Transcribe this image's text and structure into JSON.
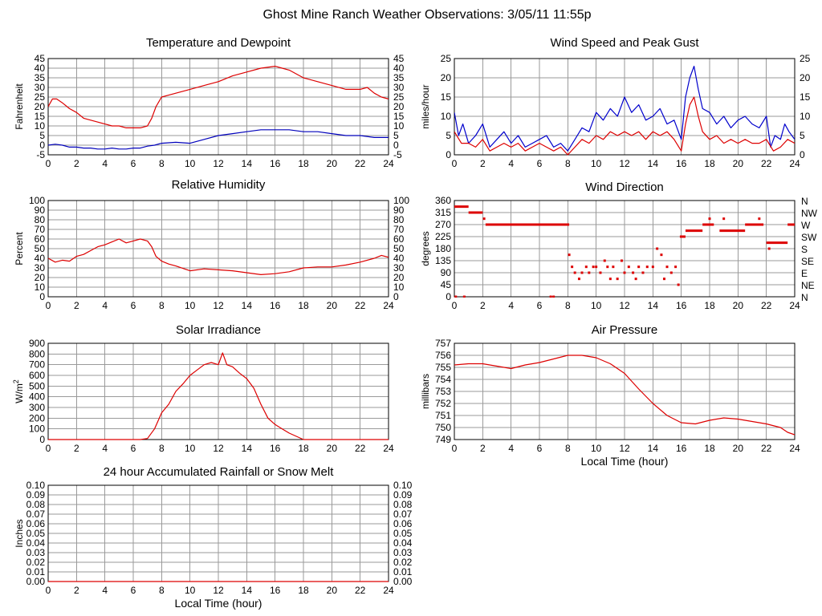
{
  "page_title": "Ghost Mine Ranch Weather Observations: 3/05/11 11:55p",
  "colors": {
    "temp": "#dd0000",
    "dew": "#0000bb",
    "wind": "#0000cc",
    "gust": "#dd0000",
    "humid": "#dd0000",
    "dir": "#dd0000",
    "solar": "#dd0000",
    "pressure": "#dd0000",
    "rain": "#dd0000",
    "grid": "#9a9a9a"
  },
  "chart_data": [
    {
      "id": "temperature",
      "type": "line",
      "title": "Temperature and Dewpoint",
      "xlabel": "",
      "ylabel": "Fahrenheit",
      "xlim": [
        0,
        24
      ],
      "ylim": [
        -5,
        45
      ],
      "x_ticks": [
        "0",
        "2",
        "4",
        "6",
        "8",
        "10",
        "12",
        "14",
        "16",
        "18",
        "20",
        "22",
        "24"
      ],
      "y_ticks": [
        "-5",
        "0",
        "5",
        "10",
        "15",
        "20",
        "25",
        "30",
        "35",
        "40",
        "45"
      ],
      "right_axis": true,
      "grid": true,
      "series": [
        {
          "color_key": "temp",
          "x": [
            0,
            0.3,
            0.6,
            1,
            1.5,
            2,
            2.5,
            3,
            3.5,
            4,
            4.5,
            5,
            5.5,
            6,
            6.5,
            7,
            7.3,
            7.6,
            8,
            8.5,
            9,
            10,
            11,
            12,
            13,
            14,
            15,
            16,
            16.5,
            17,
            18,
            19,
            20,
            21,
            22,
            22.5,
            23,
            23.5,
            24
          ],
          "values": [
            20,
            24,
            24,
            22,
            19,
            17,
            14,
            13,
            12,
            11,
            10,
            10,
            9,
            9,
            9,
            10,
            14,
            20,
            25,
            26,
            27,
            29,
            31,
            33,
            36,
            38,
            40,
            41,
            40,
            39,
            35,
            33,
            31,
            29,
            29,
            30,
            27,
            25,
            24
          ]
        },
        {
          "color_key": "dew",
          "x": [
            0,
            0.5,
            1,
            1.5,
            2,
            2.5,
            3,
            3.5,
            4,
            4.5,
            5,
            5.5,
            6,
            6.5,
            7,
            7.5,
            8,
            9,
            10,
            11,
            12,
            13,
            14,
            15,
            16,
            16.5,
            17,
            18,
            19,
            20,
            21,
            22,
            23,
            23.5,
            24
          ],
          "values": [
            0,
            0.5,
            0,
            -1,
            -1,
            -1.5,
            -1.5,
            -2,
            -2,
            -1.5,
            -2,
            -2,
            -1.5,
            -1.5,
            -0.5,
            0,
            1,
            1.5,
            1,
            3,
            5,
            6,
            7,
            8,
            8,
            8,
            8,
            7,
            7,
            6,
            5,
            5,
            4,
            4,
            4
          ]
        }
      ]
    },
    {
      "id": "wind",
      "type": "line",
      "title": "Wind Speed and Peak Gust",
      "xlabel": "",
      "ylabel": "miles/hour",
      "xlim": [
        0,
        24
      ],
      "ylim": [
        0,
        25
      ],
      "x_ticks": [
        "0",
        "2",
        "4",
        "6",
        "8",
        "10",
        "12",
        "14",
        "16",
        "18",
        "20",
        "22",
        "24"
      ],
      "y_ticks": [
        "0",
        "5",
        "10",
        "15",
        "20",
        "25"
      ],
      "right_axis": true,
      "grid": true,
      "series": [
        {
          "color_key": "wind",
          "x": [
            0,
            0.3,
            0.6,
            1,
            1.5,
            2,
            2.5,
            3,
            3.5,
            4,
            4.5,
            5,
            5.5,
            6,
            6.5,
            7,
            7.5,
            8,
            8.5,
            9,
            9.5,
            10,
            10.5,
            11,
            11.5,
            12,
            12.5,
            13,
            13.5,
            14,
            14.5,
            15,
            15.5,
            16,
            16.3,
            16.6,
            16.9,
            17.2,
            17.5,
            18,
            18.5,
            19,
            19.5,
            20,
            20.5,
            21,
            21.5,
            22,
            22.3,
            22.6,
            23,
            23.3,
            23.6,
            24
          ],
          "values": [
            11,
            5,
            8,
            3,
            5,
            8,
            2,
            4,
            6,
            3,
            5,
            2,
            3,
            4,
            5,
            2,
            3,
            1,
            4,
            7,
            6,
            11,
            9,
            12,
            10,
            15,
            11,
            13,
            9,
            10,
            12,
            8,
            9,
            4,
            15,
            20,
            23,
            17,
            12,
            11,
            8,
            10,
            7,
            9,
            10,
            8,
            7,
            10,
            2,
            5,
            4,
            8,
            6,
            4
          ]
        },
        {
          "color_key": "gust",
          "x": [
            0,
            0.5,
            1,
            1.5,
            2,
            2.5,
            3,
            3.5,
            4,
            4.5,
            5,
            5.5,
            6,
            6.5,
            7,
            7.5,
            8,
            8.5,
            9,
            9.5,
            10,
            10.5,
            11,
            11.5,
            12,
            12.5,
            13,
            13.5,
            14,
            14.5,
            15,
            15.5,
            16,
            16.3,
            16.6,
            16.9,
            17.2,
            17.5,
            18,
            18.5,
            19,
            19.5,
            20,
            20.5,
            21,
            21.5,
            22,
            22.5,
            23,
            23.5,
            24
          ],
          "values": [
            6,
            3,
            3,
            2,
            4,
            1,
            2,
            3,
            2,
            3,
            1,
            2,
            3,
            2,
            1,
            2,
            0,
            2,
            4,
            3,
            5,
            4,
            6,
            5,
            6,
            5,
            6,
            4,
            6,
            5,
            6,
            4,
            1,
            8,
            13,
            15,
            10,
            6,
            4,
            5,
            3,
            4,
            3,
            4,
            3,
            3,
            4,
            1,
            2,
            4,
            3
          ]
        }
      ]
    },
    {
      "id": "humidity",
      "type": "line",
      "title": "Relative Humidity",
      "xlabel": "",
      "ylabel": "Percent",
      "xlim": [
        0,
        24
      ],
      "ylim": [
        0,
        100
      ],
      "x_ticks": [
        "0",
        "2",
        "4",
        "6",
        "8",
        "10",
        "12",
        "14",
        "16",
        "18",
        "20",
        "22",
        "24"
      ],
      "y_ticks": [
        "0",
        "10",
        "20",
        "30",
        "40",
        "50",
        "60",
        "70",
        "80",
        "90",
        "100"
      ],
      "right_axis": true,
      "grid": true,
      "series": [
        {
          "color_key": "humid",
          "x": [
            0,
            0.5,
            1,
            1.5,
            2,
            2.5,
            3,
            3.5,
            4,
            4.5,
            5,
            5.5,
            6,
            6.5,
            7,
            7.3,
            7.6,
            8,
            8.5,
            9,
            10,
            11,
            12,
            13,
            14,
            15,
            16,
            17,
            18,
            19,
            20,
            21,
            22,
            23,
            23.5,
            24
          ],
          "values": [
            40,
            36,
            38,
            37,
            42,
            44,
            48,
            52,
            54,
            57,
            60,
            56,
            58,
            60,
            58,
            52,
            42,
            37,
            34,
            32,
            27,
            29,
            28,
            27,
            25,
            23,
            24,
            26,
            30,
            31,
            31,
            33,
            36,
            40,
            43,
            41
          ]
        }
      ]
    },
    {
      "id": "direction",
      "type": "scatter",
      "title": "Wind Direction",
      "xlabel": "",
      "ylabel": "degrees",
      "xlim": [
        0,
        24
      ],
      "ylim": [
        0,
        360
      ],
      "x_ticks": [
        "0",
        "2",
        "4",
        "6",
        "8",
        "10",
        "12",
        "14",
        "16",
        "18",
        "20",
        "22",
        "24"
      ],
      "y_ticks": [
        "0",
        "45",
        "90",
        "135",
        "180",
        "225",
        "270",
        "315",
        "360"
      ],
      "right_labels": [
        "N",
        "NE",
        "E",
        "SE",
        "S",
        "SW",
        "W",
        "NW",
        "N"
      ],
      "grid": true,
      "segments": [
        [
          0,
          1,
          337
        ],
        [
          1,
          2,
          315
        ],
        [
          2.2,
          8.1,
          270
        ],
        [
          15.9,
          16.3,
          225
        ],
        [
          16.3,
          17.5,
          247
        ],
        [
          17.5,
          18.3,
          270
        ],
        [
          18.7,
          20.5,
          247
        ],
        [
          20.5,
          21.8,
          270
        ],
        [
          22,
          23.5,
          202
        ],
        [
          23.5,
          24,
          270
        ]
      ],
      "points": [
        [
          0.1,
          0
        ],
        [
          0.7,
          0
        ],
        [
          2.1,
          292
        ],
        [
          6.8,
          0
        ],
        [
          7,
          0
        ],
        [
          8.1,
          157
        ],
        [
          8.3,
          112
        ],
        [
          8.5,
          90
        ],
        [
          8.8,
          67
        ],
        [
          9,
          90
        ],
        [
          9.3,
          112
        ],
        [
          9.5,
          90
        ],
        [
          9.8,
          112
        ],
        [
          10,
          112
        ],
        [
          10.3,
          90
        ],
        [
          10.6,
          135
        ],
        [
          10.8,
          112
        ],
        [
          11,
          67
        ],
        [
          11.2,
          112
        ],
        [
          11.5,
          67
        ],
        [
          11.8,
          135
        ],
        [
          12,
          90
        ],
        [
          12.3,
          112
        ],
        [
          12.6,
          90
        ],
        [
          12.8,
          67
        ],
        [
          13,
          112
        ],
        [
          13.3,
          90
        ],
        [
          13.6,
          112
        ],
        [
          14,
          112
        ],
        [
          14.3,
          180
        ],
        [
          14.6,
          157
        ],
        [
          14.8,
          67
        ],
        [
          15,
          112
        ],
        [
          15.3,
          90
        ],
        [
          15.6,
          112
        ],
        [
          15.8,
          45
        ],
        [
          18,
          292
        ],
        [
          19,
          292
        ],
        [
          21.5,
          292
        ],
        [
          22.2,
          180
        ]
      ]
    },
    {
      "id": "solar",
      "type": "area",
      "title": "Solar Irradiance",
      "xlabel": "",
      "ylabel": "W/m2",
      "xlim": [
        0,
        24
      ],
      "ylim": [
        0,
        900
      ],
      "x_ticks": [
        "0",
        "2",
        "4",
        "6",
        "8",
        "10",
        "12",
        "14",
        "16",
        "18",
        "20",
        "22",
        "24"
      ],
      "y_ticks": [
        "0",
        "100",
        "200",
        "300",
        "400",
        "500",
        "600",
        "700",
        "800",
        "900"
      ],
      "right_axis": false,
      "grid": true,
      "series": [
        {
          "color_key": "solar",
          "x": [
            0,
            6.5,
            7,
            7.5,
            8,
            8.5,
            9,
            9.5,
            10,
            10.5,
            11,
            11.5,
            12,
            12.3,
            12.6,
            13,
            13.5,
            14,
            14.5,
            15,
            15.5,
            16,
            16.5,
            17,
            17.5,
            18,
            24
          ],
          "values": [
            0,
            0,
            10,
            100,
            250,
            330,
            450,
            520,
            600,
            650,
            700,
            720,
            700,
            810,
            700,
            680,
            620,
            570,
            480,
            330,
            200,
            140,
            100,
            60,
            30,
            0,
            0
          ]
        }
      ]
    },
    {
      "id": "pressure",
      "type": "line",
      "title": "Air Pressure",
      "xlabel": "Local Time (hour)",
      "ylabel": "millibars",
      "xlim": [
        0,
        24
      ],
      "ylim": [
        749,
        757
      ],
      "x_ticks": [
        "0",
        "2",
        "4",
        "6",
        "8",
        "10",
        "12",
        "14",
        "16",
        "18",
        "20",
        "22",
        "24"
      ],
      "y_ticks": [
        "749",
        "750",
        "751",
        "752",
        "753",
        "754",
        "755",
        "756",
        "757"
      ],
      "right_axis": false,
      "grid": true,
      "series": [
        {
          "color_key": "pressure",
          "x": [
            0,
            1,
            2,
            3,
            4,
            5,
            6,
            7,
            8,
            9,
            10,
            11,
            12,
            13,
            14,
            15,
            16,
            17,
            18,
            19,
            20,
            21,
            22,
            23,
            23.5,
            24
          ],
          "values": [
            755.2,
            755.3,
            755.3,
            755.1,
            754.9,
            755.2,
            755.4,
            755.7,
            756.0,
            756.0,
            755.8,
            755.3,
            754.5,
            753.2,
            752.0,
            751.0,
            750.4,
            750.3,
            750.6,
            750.8,
            750.7,
            750.5,
            750.3,
            750.0,
            749.6,
            749.4
          ]
        }
      ]
    },
    {
      "id": "rain",
      "type": "line",
      "title": "24 hour Accumulated Rainfall or Snow Melt",
      "xlabel": "Local Time (hour)",
      "ylabel": "Inches",
      "xlim": [
        0,
        24
      ],
      "ylim": [
        0,
        0.1
      ],
      "x_ticks": [
        "0",
        "2",
        "4",
        "6",
        "8",
        "10",
        "12",
        "14",
        "16",
        "18",
        "20",
        "22",
        "24"
      ],
      "y_ticks": [
        "0.00",
        "0.01",
        "0.02",
        "0.03",
        "0.04",
        "0.05",
        "0.06",
        "0.07",
        "0.08",
        "0.09",
        "0.10"
      ],
      "right_axis": true,
      "grid": true,
      "series": [
        {
          "color_key": "rain",
          "x": [
            0,
            24
          ],
          "values": [
            0,
            0
          ]
        }
      ]
    }
  ]
}
